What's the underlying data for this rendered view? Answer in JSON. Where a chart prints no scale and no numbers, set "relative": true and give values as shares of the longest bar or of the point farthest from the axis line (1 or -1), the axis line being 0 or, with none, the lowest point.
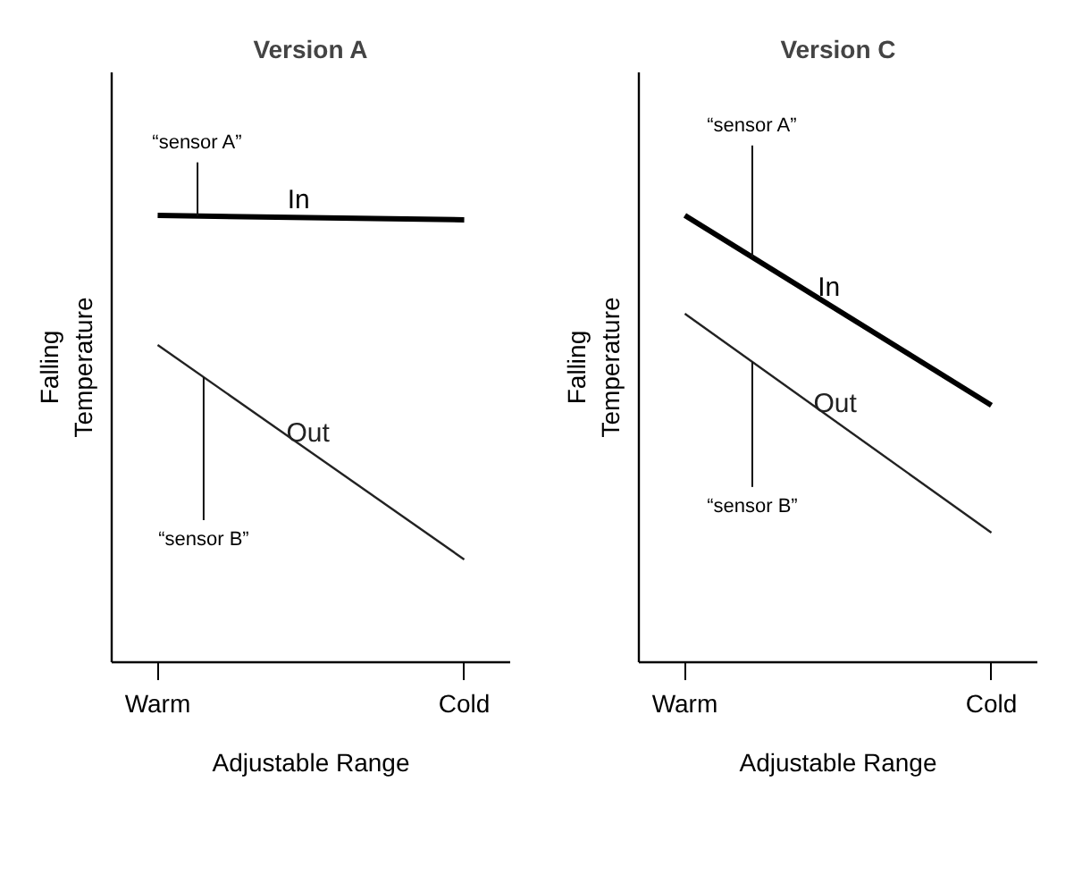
{
  "chart_data": [
    {
      "type": "line",
      "title": "Version A",
      "xlabel": "Adjustable Range",
      "ylabel": "Falling\nTemperature",
      "categories": [
        "Warm",
        "Cold"
      ],
      "relative": true,
      "grid": false,
      "series": [
        {
          "name": "In",
          "color": "#000000",
          "values": [
            1,
            0.99
          ]
        },
        {
          "name": "Out",
          "color": "#222222",
          "values": [
            0.71,
            0.23
          ]
        }
      ],
      "annotations": [
        "“sensor A”",
        "“sensor B”"
      ]
    },
    {
      "type": "line",
      "title": "Version C",
      "xlabel": "Adjustable Range",
      "ylabel": "Falling\nTemperature",
      "categories": [
        "Warm",
        "Cold"
      ],
      "relative": true,
      "grid": false,
      "series": [
        {
          "name": "In",
          "color": "#000000",
          "values": [
            1,
            0.575
          ]
        },
        {
          "name": "Out",
          "color": "#222222",
          "values": [
            0.78,
            0.29
          ]
        }
      ],
      "annotations": [
        "“sensor A”",
        "“sensor B”"
      ]
    }
  ]
}
